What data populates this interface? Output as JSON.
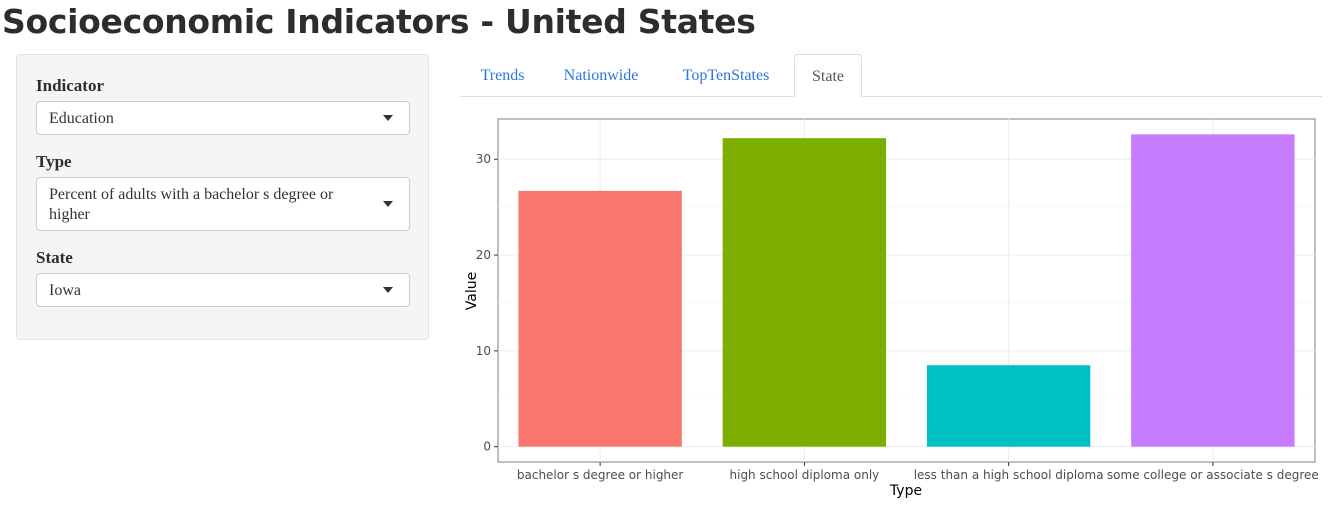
{
  "header": {
    "title": "Socioeconomic Indicators - United States"
  },
  "sidebar": {
    "indicator": {
      "label": "Indicator",
      "value": "Education"
    },
    "type": {
      "label": "Type",
      "value": "Percent of adults with a bachelor s degree or higher"
    },
    "state": {
      "label": "State",
      "value": "Iowa"
    }
  },
  "tabs": [
    {
      "label": "Trends",
      "active": false
    },
    {
      "label": "Nationwide",
      "active": false
    },
    {
      "label": "TopTenStates",
      "active": false
    },
    {
      "label": "State",
      "active": true
    }
  ],
  "chart_data": {
    "type": "bar",
    "categories": [
      "bachelor s degree or higher",
      "high school diploma only",
      "less than a high school diploma",
      "some college or associate s degree"
    ],
    "values": [
      26.7,
      32.2,
      8.5,
      32.6
    ],
    "colors": [
      "#F8766D",
      "#7CAE00",
      "#00BFC4",
      "#C77CFF"
    ],
    "xlabel": "Type",
    "ylabel": "Value",
    "yticks": [
      0,
      10,
      20,
      30
    ],
    "ylim": [
      -1.6,
      34.2
    ],
    "grid": true,
    "legend": "none"
  }
}
